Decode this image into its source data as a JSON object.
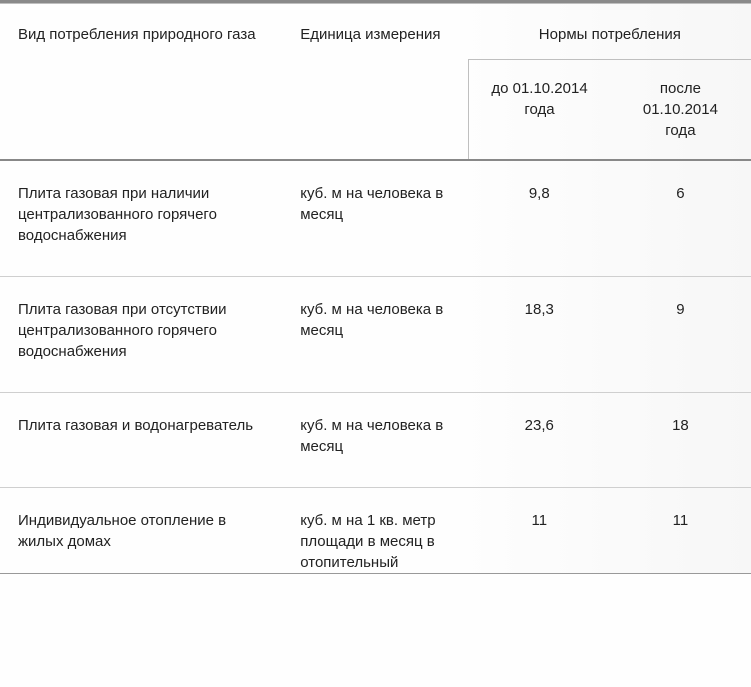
{
  "table": {
    "headers": {
      "consumption_type": "Вид потребления природного газа",
      "unit": "Единица измерения",
      "norms": "Нормы потребления",
      "before": "до 01.10.2014 года",
      "after": "после 01.10.2014 года"
    },
    "rows": [
      {
        "type": "Плита газовая при наличии централизованного горячего водоснабжения",
        "unit": "куб. м на человека в месяц",
        "before": "9,8",
        "after": "6"
      },
      {
        "type": "Плита газовая при отсутствии централизованного горячего водоснабжения",
        "unit": "куб. м на человека в месяц",
        "before": "18,3",
        "after": "9"
      },
      {
        "type": "Плита газовая и водонагреватель",
        "unit": "куб. м на человека в месяц",
        "before": "23,6",
        "after": "18"
      },
      {
        "type": "Индивидуальное отопление в жилых домах",
        "unit": "куб. м на 1 кв. метр площади в месяц в отопительный",
        "before": "11",
        "after": "11"
      }
    ]
  }
}
